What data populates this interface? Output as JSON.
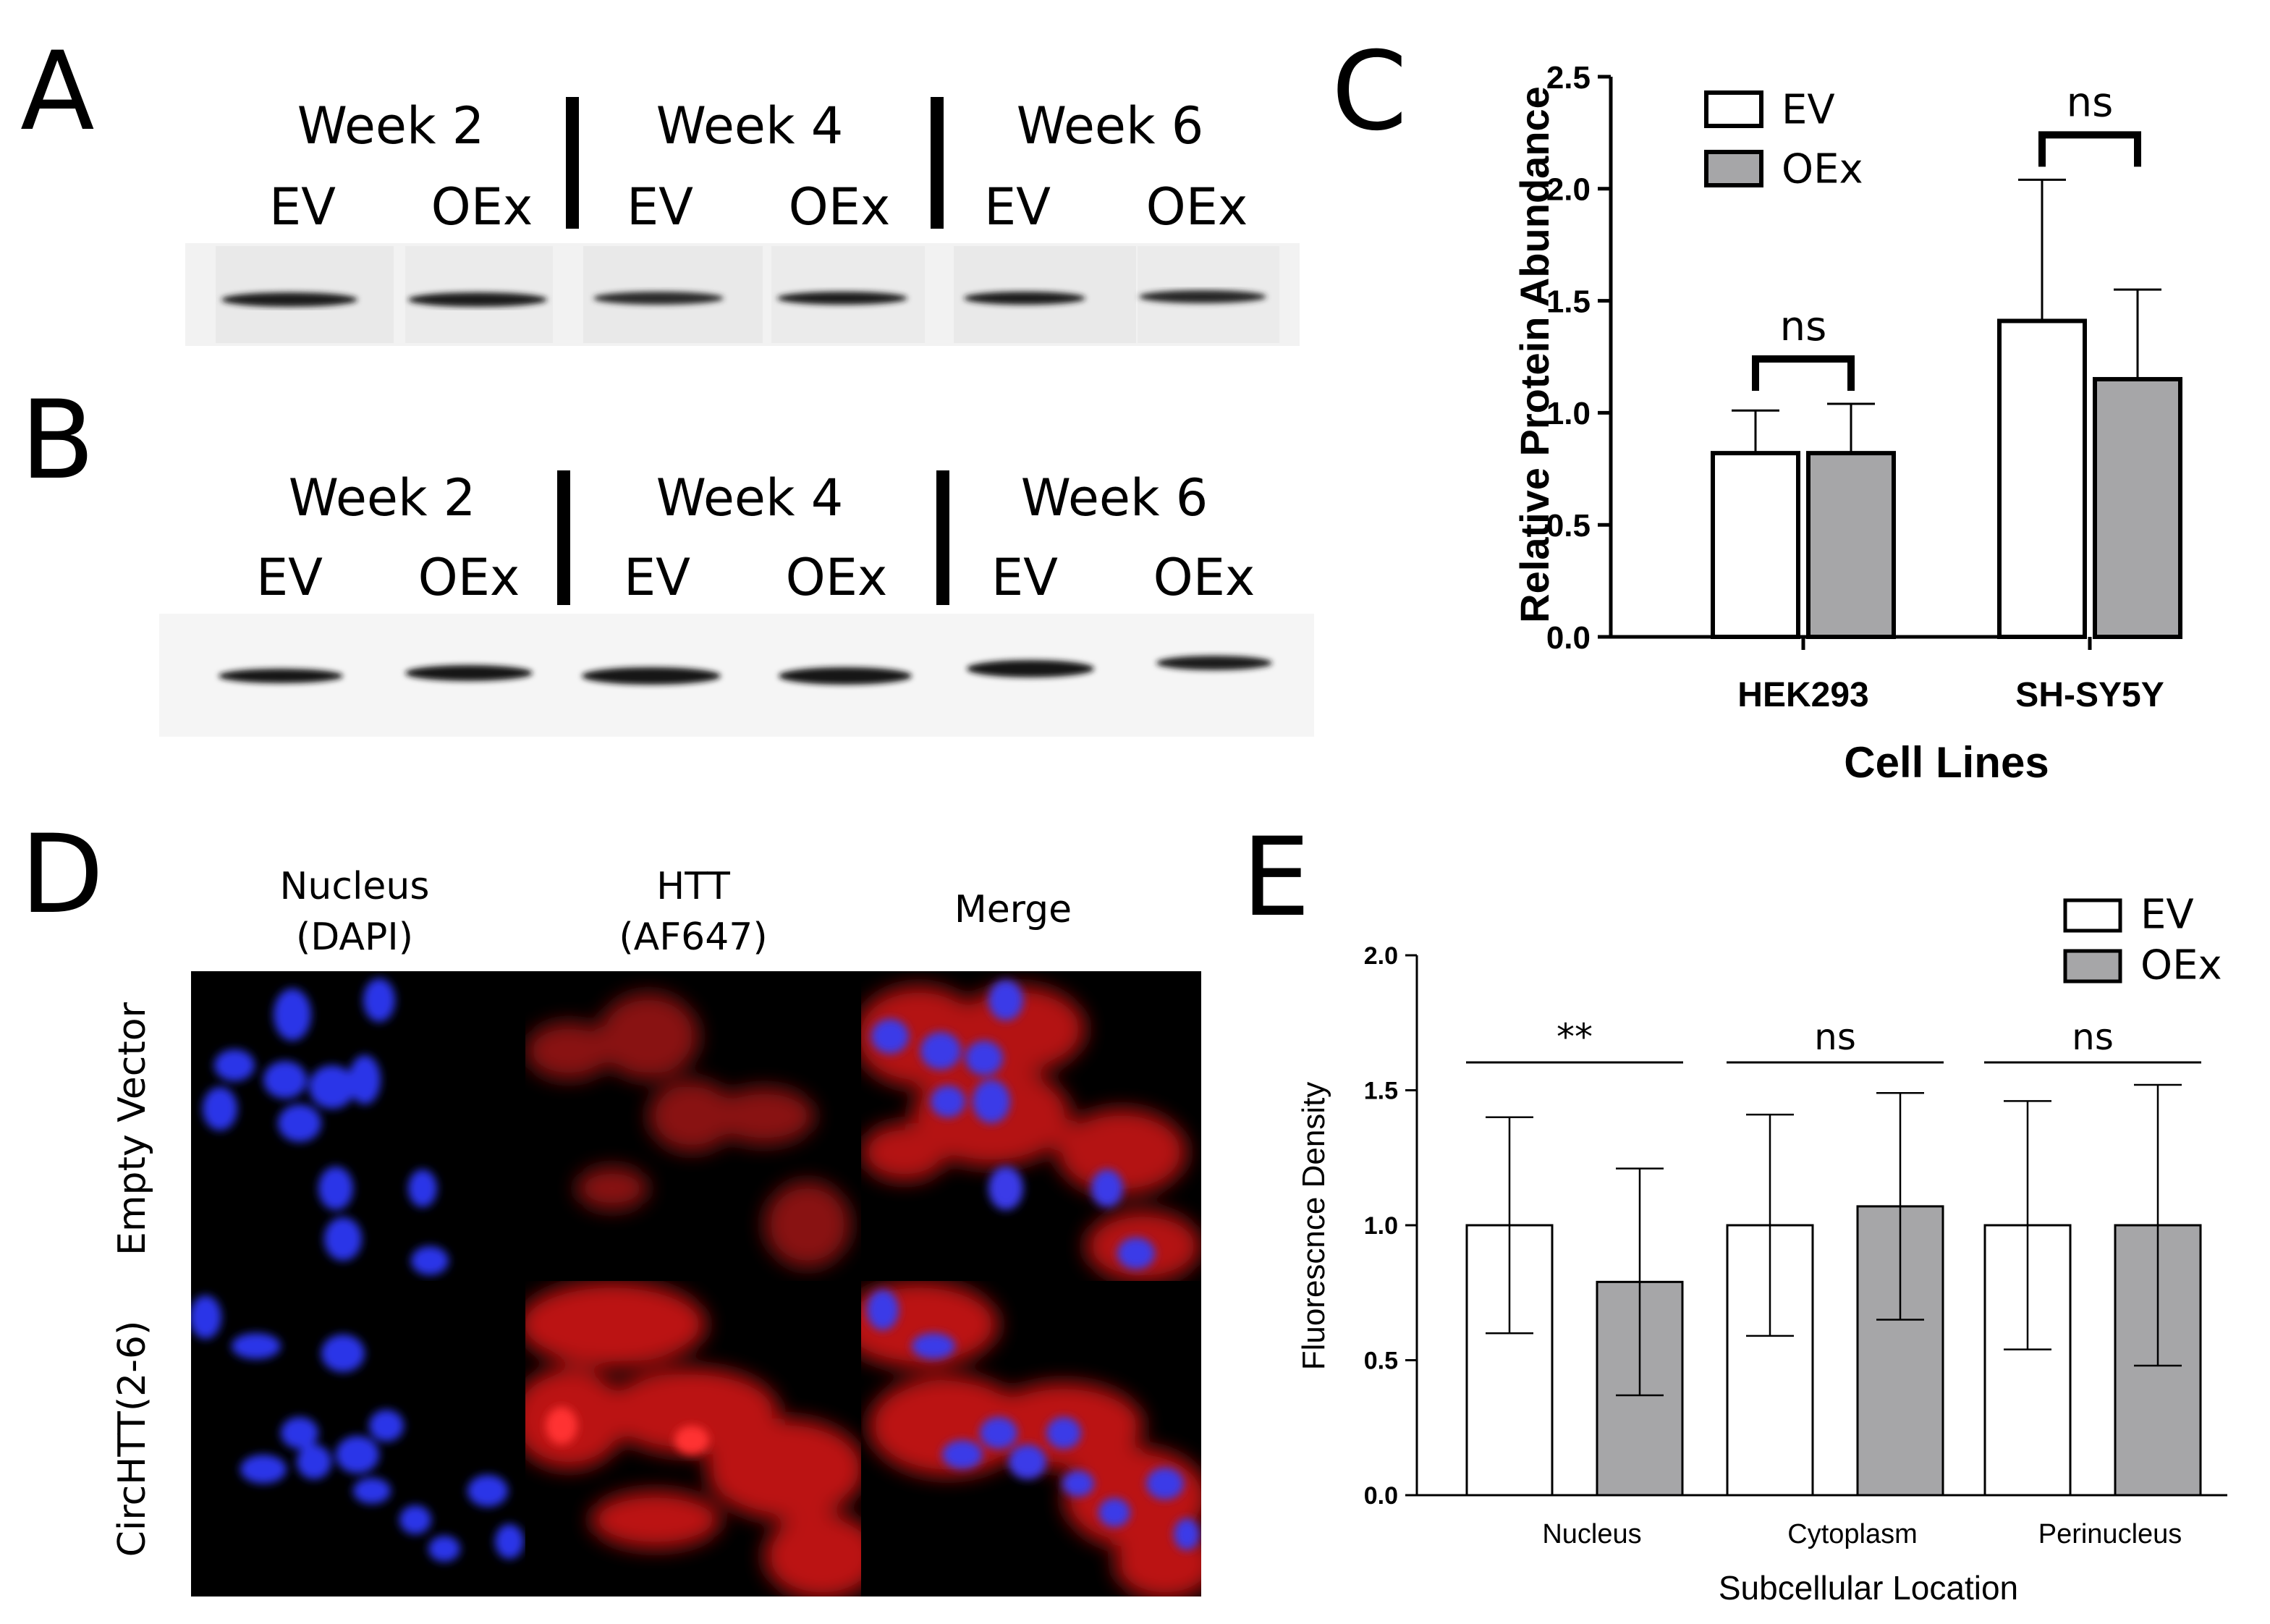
{
  "panels": {
    "a": {
      "letter": "A",
      "weeks": [
        "Week 2",
        "Week 4",
        "Week 6"
      ],
      "lanes": [
        "EV",
        "OEx",
        "EV",
        "OEx",
        "EV",
        "OEx"
      ]
    },
    "b": {
      "letter": "B",
      "weeks": [
        "Week 2",
        "Week 4",
        "Week 6"
      ],
      "lanes": [
        "EV",
        "OEx",
        "EV",
        "OEx",
        "EV",
        "OEx"
      ]
    },
    "c": {
      "letter": "C"
    },
    "d": {
      "letter": "D",
      "columns": [
        {
          "line1": "Nucleus",
          "line2": "(DAPI)"
        },
        {
          "line1": "HTT",
          "line2": "(AF647)"
        },
        {
          "line1": "Merge",
          "line2": ""
        }
      ],
      "rows": [
        "Empty Vector",
        "CircHTT(2-6)"
      ]
    },
    "e": {
      "letter": "E"
    }
  },
  "colors": {
    "ev_fill": "#ffffff",
    "oex_fill": "#a6a6a8",
    "blot_band": "#1a1a1a",
    "dapi": "#2a36e8",
    "af647": "#e01818"
  },
  "chart_data": [
    {
      "type": "bar",
      "title": "",
      "xlabel": "Cell Lines",
      "ylabel": "Relative Protein Abundance",
      "categories": [
        "HEK293",
        "SH-SY5Y"
      ],
      "ylim": [
        0,
        2.5
      ],
      "yticks": [
        "0.0",
        "0.5",
        "1.0",
        "1.5",
        "2.0",
        "2.5"
      ],
      "series": [
        {
          "name": "EV",
          "values": [
            0.82,
            1.41
          ],
          "error": [
            0.19,
            0.63
          ]
        },
        {
          "name": "OEx",
          "values": [
            0.82,
            1.15
          ],
          "error": [
            0.22,
            0.4
          ]
        }
      ],
      "significance": [
        "ns",
        "ns"
      ],
      "legend": "top-left",
      "grid": false
    },
    {
      "type": "bar",
      "title": "",
      "xlabel": "Subcellular Location",
      "ylabel": "Fluorescnce Density",
      "categories": [
        "Nucleus",
        "Cytoplasm",
        "Perinucleus"
      ],
      "ylim": [
        0,
        2.0
      ],
      "yticks": [
        "0.0",
        "0.5",
        "1.0",
        "1.5",
        "2.0"
      ],
      "series": [
        {
          "name": "EV",
          "values": [
            1.0,
            1.0,
            1.0
          ],
          "error": [
            0.4,
            0.41,
            0.46
          ]
        },
        {
          "name": "OEx",
          "values": [
            0.79,
            1.07,
            1.0
          ],
          "error": [
            0.42,
            0.42,
            0.52
          ]
        }
      ],
      "significance": [
        "**",
        "ns",
        "ns"
      ],
      "legend": "top-right",
      "grid": false
    }
  ]
}
